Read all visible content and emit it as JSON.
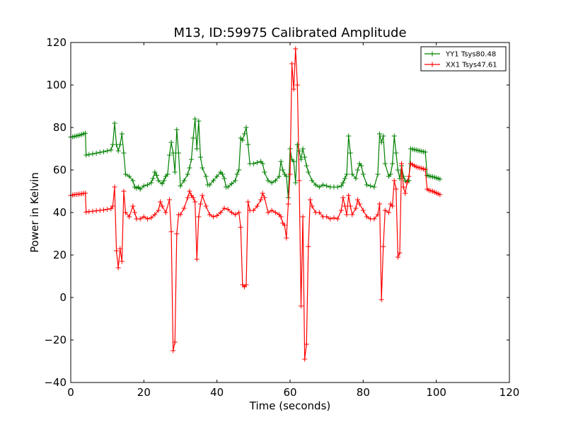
{
  "chart_data": {
    "type": "line",
    "title": "M13, ID:59975 Calibrated Amplitude",
    "xlabel": "Time (seconds)",
    "ylabel": "Power in Kelvin",
    "xlim": [
      0,
      120
    ],
    "ylim": [
      -40,
      120
    ],
    "xticks": [
      0,
      20,
      40,
      60,
      80,
      100,
      120
    ],
    "xtick_labels": [
      "0",
      "20",
      "40",
      "60",
      "80",
      "100",
      "120"
    ],
    "yticks": [
      -40,
      -20,
      0,
      20,
      40,
      60,
      80,
      100,
      120
    ],
    "ytick_labels": [
      "−40",
      "−20",
      "0",
      "20",
      "40",
      "60",
      "80",
      "100",
      "120"
    ],
    "grid": false,
    "legend": "top-right",
    "marker": "plus",
    "series": [
      {
        "name": "YY1 Tsys80.48",
        "color": "#008000",
        "points": [
          [
            0,
            75.5
          ],
          [
            0.5,
            75.6
          ],
          [
            1,
            75.8
          ],
          [
            1.5,
            76
          ],
          [
            2,
            76.2
          ],
          [
            2.5,
            76.4
          ],
          [
            3,
            76.7
          ],
          [
            3.5,
            77
          ],
          [
            4,
            77.3
          ],
          [
            4.2,
            67
          ],
          [
            5,
            67.3
          ],
          [
            6,
            67.6
          ],
          [
            7,
            67.9
          ],
          [
            8,
            68.3
          ],
          [
            9,
            68.6
          ],
          [
            10,
            69
          ],
          [
            11,
            69.4
          ],
          [
            11.5,
            72
          ],
          [
            12,
            82
          ],
          [
            12.5,
            72
          ],
          [
            13,
            69
          ],
          [
            13.5,
            72
          ],
          [
            14,
            77
          ],
          [
            14.5,
            68
          ],
          [
            15,
            58
          ],
          [
            16,
            57
          ],
          [
            17,
            55
          ],
          [
            17.5,
            52
          ],
          [
            18,
            51.5
          ],
          [
            18.5,
            52
          ],
          [
            19,
            51
          ],
          [
            20,
            52.5
          ],
          [
            21,
            53
          ],
          [
            22,
            54
          ],
          [
            22.5,
            56
          ],
          [
            23,
            59
          ],
          [
            23.5,
            57.5
          ],
          [
            24,
            55
          ],
          [
            25,
            53.5
          ],
          [
            25.5,
            55
          ],
          [
            26,
            57
          ],
          [
            26.5,
            58
          ],
          [
            27,
            67
          ],
          [
            27.5,
            73
          ],
          [
            28,
            68
          ],
          [
            28.5,
            59
          ],
          [
            29,
            79
          ],
          [
            29.5,
            68
          ],
          [
            30,
            52.5
          ],
          [
            31,
            55
          ],
          [
            32,
            58
          ],
          [
            32.5,
            61
          ],
          [
            33,
            65
          ],
          [
            33.5,
            75
          ],
          [
            34,
            84
          ],
          [
            34.5,
            70
          ],
          [
            35,
            83
          ],
          [
            35.5,
            66
          ],
          [
            36,
            61
          ],
          [
            37,
            57
          ],
          [
            37.5,
            53
          ],
          [
            38,
            53
          ],
          [
            39,
            55
          ],
          [
            40,
            57
          ],
          [
            41,
            59
          ],
          [
            41.5,
            58
          ],
          [
            42,
            56
          ],
          [
            42.5,
            52
          ],
          [
            43,
            52
          ],
          [
            44,
            53.5
          ],
          [
            45,
            55
          ],
          [
            45.5,
            58
          ],
          [
            46,
            60
          ],
          [
            46.5,
            75
          ],
          [
            47,
            74
          ],
          [
            47.5,
            77
          ],
          [
            48,
            80
          ],
          [
            48.5,
            72
          ],
          [
            49,
            63
          ],
          [
            50,
            63
          ],
          [
            51,
            63.5
          ],
          [
            52,
            64
          ],
          [
            52.5,
            63
          ],
          [
            53,
            59
          ],
          [
            54,
            55
          ],
          [
            55,
            54
          ],
          [
            56,
            55
          ],
          [
            57,
            57
          ],
          [
            57.5,
            64
          ],
          [
            58,
            60
          ],
          [
            58.5,
            58
          ],
          [
            59,
            57
          ],
          [
            59.5,
            47
          ],
          [
            60,
            70
          ],
          [
            60.5,
            65
          ],
          [
            61,
            64
          ],
          [
            61.5,
            54
          ],
          [
            62,
            72
          ],
          [
            62.5,
            69
          ],
          [
            63,
            65
          ],
          [
            63.5,
            70
          ],
          [
            64,
            66
          ],
          [
            64.5,
            62
          ],
          [
            65,
            59
          ],
          [
            66,
            55
          ],
          [
            67,
            53
          ],
          [
            68,
            52
          ],
          [
            69,
            53
          ],
          [
            70,
            52.5
          ],
          [
            71,
            52
          ],
          [
            72,
            52
          ],
          [
            73,
            52
          ],
          [
            74,
            52.5
          ],
          [
            74.5,
            54
          ],
          [
            75,
            56
          ],
          [
            75.5,
            58
          ],
          [
            76,
            76
          ],
          [
            76.5,
            68
          ],
          [
            77,
            58
          ],
          [
            78,
            56
          ],
          [
            78.5,
            60
          ],
          [
            79,
            63
          ],
          [
            79.5,
            62
          ],
          [
            80,
            58
          ],
          [
            81,
            53
          ],
          [
            82,
            52.5
          ],
          [
            83,
            52
          ],
          [
            84,
            58
          ],
          [
            84.5,
            77
          ],
          [
            85,
            73
          ],
          [
            85.5,
            76
          ],
          [
            86,
            63
          ],
          [
            87,
            57
          ],
          [
            87.5,
            58
          ],
          [
            88,
            63
          ],
          [
            88.5,
            76
          ],
          [
            89,
            68
          ],
          [
            89.5,
            60
          ],
          [
            90,
            56
          ],
          [
            90.5,
            62
          ],
          [
            91,
            57
          ],
          [
            91.5,
            55
          ],
          [
            92,
            54.5
          ],
          [
            92.5,
            55
          ],
          [
            93,
            70
          ],
          [
            93.5,
            69.8
          ],
          [
            94,
            69.6
          ],
          [
            94.5,
            69.4
          ],
          [
            95,
            69.2
          ],
          [
            95.5,
            69
          ],
          [
            96,
            68.8
          ],
          [
            96.5,
            68.6
          ],
          [
            97,
            68.4
          ],
          [
            97.5,
            57.5
          ],
          [
            98,
            57.2
          ],
          [
            98.5,
            57
          ],
          [
            99,
            56.8
          ],
          [
            99.5,
            56.6
          ],
          [
            100,
            56.3
          ],
          [
            100.5,
            56
          ],
          [
            101,
            55.7
          ]
        ]
      },
      {
        "name": "XX1 Tsys47.61",
        "color": "#ff0000",
        "points": [
          [
            0,
            48
          ],
          [
            0.5,
            48.2
          ],
          [
            1,
            48.4
          ],
          [
            1.5,
            48.5
          ],
          [
            2,
            48.6
          ],
          [
            2.5,
            48.7
          ],
          [
            3,
            48.8
          ],
          [
            3.5,
            49
          ],
          [
            4,
            49.1
          ],
          [
            4.2,
            40.2
          ],
          [
            5,
            40.4
          ],
          [
            6,
            40.6
          ],
          [
            7,
            40.8
          ],
          [
            8,
            41
          ],
          [
            9,
            41.2
          ],
          [
            10,
            41.5
          ],
          [
            11,
            41.8
          ],
          [
            11.5,
            43
          ],
          [
            12,
            52
          ],
          [
            12.5,
            22
          ],
          [
            13,
            14
          ],
          [
            13.5,
            23
          ],
          [
            14,
            17
          ],
          [
            14.5,
            50
          ],
          [
            15,
            40
          ],
          [
            16,
            38
          ],
          [
            17,
            43
          ],
          [
            17.5,
            40
          ],
          [
            18,
            37
          ],
          [
            19,
            37
          ],
          [
            20,
            38
          ],
          [
            21,
            37
          ],
          [
            22,
            37.5
          ],
          [
            23,
            39
          ],
          [
            24,
            41
          ],
          [
            24.5,
            45
          ],
          [
            25,
            43
          ],
          [
            26,
            40
          ],
          [
            27,
            46
          ],
          [
            27.5,
            31
          ],
          [
            28,
            -25
          ],
          [
            28.5,
            -21
          ],
          [
            29,
            30
          ],
          [
            29.5,
            39
          ],
          [
            30,
            39
          ],
          [
            31,
            42
          ],
          [
            32,
            47
          ],
          [
            32.5,
            50
          ],
          [
            33,
            48
          ],
          [
            33.5,
            47
          ],
          [
            34,
            45
          ],
          [
            34.5,
            18
          ],
          [
            35,
            38
          ],
          [
            35.5,
            44
          ],
          [
            36,
            48
          ],
          [
            37,
            43
          ],
          [
            38,
            39
          ],
          [
            39,
            38
          ],
          [
            40,
            38.5
          ],
          [
            41,
            40
          ],
          [
            42,
            42
          ],
          [
            43,
            41.5
          ],
          [
            44,
            40
          ],
          [
            45,
            39
          ],
          [
            46,
            40
          ],
          [
            46.5,
            33
          ],
          [
            47,
            6
          ],
          [
            47.5,
            5
          ],
          [
            48,
            6
          ],
          [
            48.5,
            45
          ],
          [
            49,
            41
          ],
          [
            50,
            41
          ],
          [
            51,
            43
          ],
          [
            52,
            46
          ],
          [
            52.5,
            49
          ],
          [
            53,
            47
          ],
          [
            54,
            40
          ],
          [
            55,
            41
          ],
          [
            56,
            40
          ],
          [
            57,
            39
          ],
          [
            57.5,
            38
          ],
          [
            58,
            35
          ],
          [
            58.5,
            34
          ],
          [
            59,
            28
          ],
          [
            59.5,
            44
          ],
          [
            60,
            58
          ],
          [
            60.5,
            110
          ],
          [
            61,
            98
          ],
          [
            61.5,
            117
          ],
          [
            62,
            100
          ],
          [
            62.5,
            55
          ],
          [
            63,
            -4
          ],
          [
            63.5,
            38
          ],
          [
            64,
            -29
          ],
          [
            64.5,
            -22
          ],
          [
            65,
            24
          ],
          [
            65.5,
            46
          ],
          [
            66,
            43
          ],
          [
            67,
            40
          ],
          [
            68,
            40
          ],
          [
            69,
            38
          ],
          [
            70,
            38
          ],
          [
            71,
            37
          ],
          [
            72,
            37.5
          ],
          [
            73,
            37
          ],
          [
            74,
            41
          ],
          [
            74.5,
            47
          ],
          [
            75,
            43
          ],
          [
            75.5,
            39
          ],
          [
            76,
            48
          ],
          [
            76.5,
            43
          ],
          [
            77,
            39
          ],
          [
            78,
            42
          ],
          [
            78.5,
            46
          ],
          [
            79,
            44
          ],
          [
            80,
            41
          ],
          [
            81,
            38
          ],
          [
            82,
            37
          ],
          [
            83,
            37
          ],
          [
            84,
            39
          ],
          [
            84.5,
            44
          ],
          [
            85,
            -1
          ],
          [
            85.5,
            24
          ],
          [
            86,
            41
          ],
          [
            87,
            40
          ],
          [
            87.5,
            44
          ],
          [
            88,
            43
          ],
          [
            88.5,
            55
          ],
          [
            89,
            51
          ],
          [
            89.5,
            19
          ],
          [
            90,
            21
          ],
          [
            90.5,
            63
          ],
          [
            91,
            52
          ],
          [
            91.5,
            49
          ],
          [
            92,
            54
          ],
          [
            92.5,
            57
          ],
          [
            93,
            63
          ],
          [
            93.5,
            62.5
          ],
          [
            94,
            62
          ],
          [
            94.5,
            61.5
          ],
          [
            95,
            61.2
          ],
          [
            95.5,
            61
          ],
          [
            96,
            60.8
          ],
          [
            96.5,
            60.5
          ],
          [
            97,
            60.2
          ],
          [
            97.5,
            51
          ],
          [
            98,
            50.5
          ],
          [
            98.5,
            50.2
          ],
          [
            99,
            50
          ],
          [
            99.5,
            49.6
          ],
          [
            100,
            49.2
          ],
          [
            100.5,
            48.8
          ],
          [
            101,
            48.4
          ]
        ]
      }
    ]
  }
}
